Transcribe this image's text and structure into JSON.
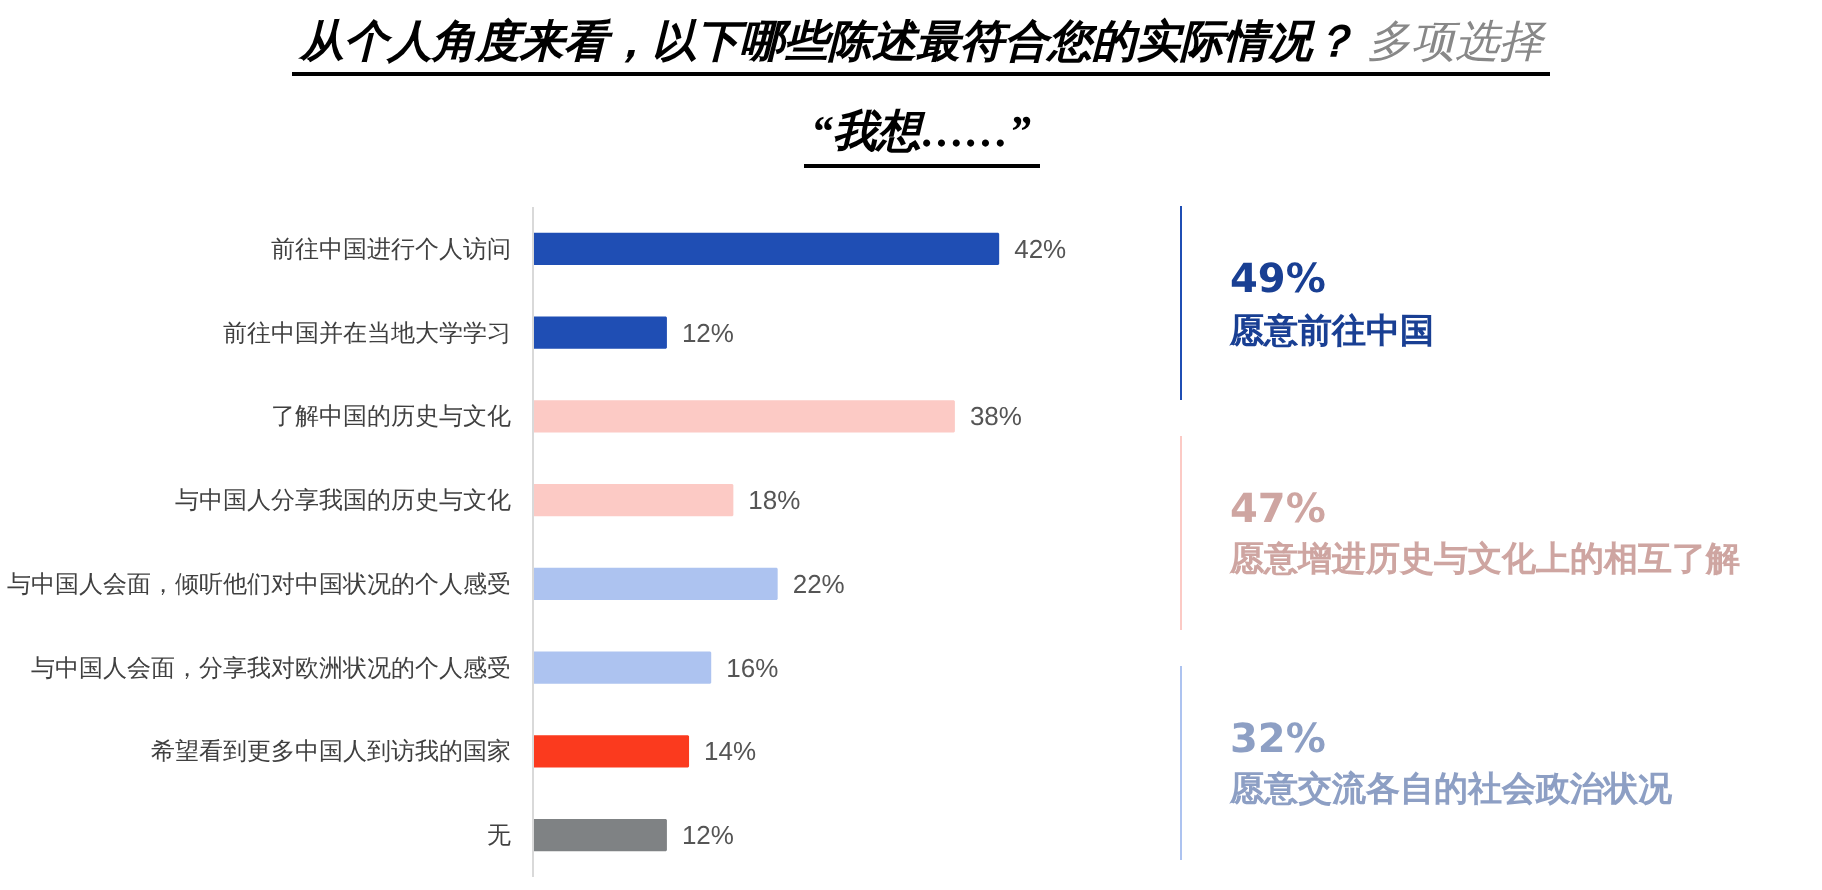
{
  "chart_data": {
    "type": "bar",
    "orientation": "horizontal",
    "title": "从个人角度来看，以下哪些陈述最符合您的实际情况？",
    "subtitle": "“我想……”",
    "categories": [
      "前往中国进行个人访问",
      "前往中国并在当地大学学习",
      "了解中国的历史与文化",
      "与中国人分享我国的历史与文化",
      "与中国人会面，倾听他们对中国状况的个人感受",
      "与中国人会面，分享我对欧洲状况的个人感受",
      "希望看到更多中国人到访我的国家",
      "无"
    ],
    "values": [
      42,
      12,
      38,
      18,
      22,
      16,
      14,
      12
    ],
    "value_labels": [
      "42%",
      "12%",
      "38%",
      "18%",
      "22%",
      "16%",
      "14%",
      "12%"
    ],
    "colors": [
      "#1f4eb4",
      "#1f4eb4",
      "#fccac5",
      "#fccac5",
      "#adc3f0",
      "#adc3f0",
      "#fb3a1e",
      "#7f8284"
    ],
    "annotations": [
      "多项选择",
      "49%",
      "愿意前往中国",
      "47%",
      "愿意增进历史与文化上的相互了解",
      "32%",
      "愿意交流各自的社会政治状况"
    ],
    "grid": false
  }
}
